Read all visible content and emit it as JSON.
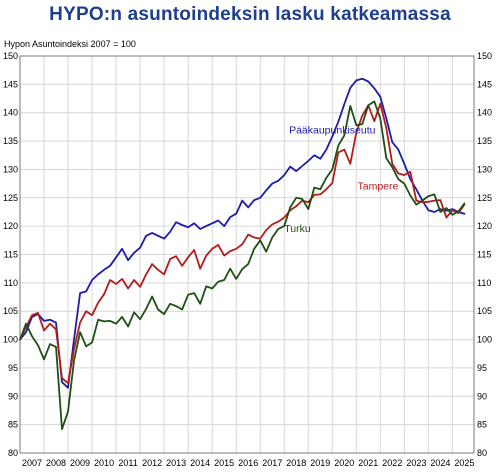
{
  "title": "HYPO:n asuntoindeksin lasku katkeamassa",
  "y_caption": "Hypon Asuntoindeksi 2007 = 100",
  "chart_data": {
    "type": "line",
    "ylim": [
      80,
      150
    ],
    "yticks": [
      80,
      85,
      90,
      95,
      100,
      105,
      110,
      115,
      120,
      125,
      130,
      135,
      140,
      145,
      150
    ],
    "xlim": [
      2007.0,
      2025.9
    ],
    "xtick_labels": [
      "2007",
      "2008",
      "2009",
      "2010",
      "2011",
      "2012",
      "2013",
      "2014",
      "2015",
      "2016",
      "2017",
      "2018",
      "2019",
      "2020",
      "2021",
      "2022",
      "2023",
      "2024",
      "2025"
    ],
    "grid": true,
    "legend": "inline labels",
    "series": [
      {
        "name": "Pääkaupunkiseutu",
        "color": "#1c1ca8",
        "x": [
          2007.0,
          2007.25,
          2007.5,
          2007.75,
          2008.0,
          2008.25,
          2008.5,
          2008.75,
          2009.0,
          2009.25,
          2009.5,
          2009.75,
          2010.0,
          2010.25,
          2010.5,
          2010.75,
          2011.0,
          2011.25,
          2011.5,
          2011.75,
          2012.0,
          2012.25,
          2012.5,
          2012.75,
          2013.0,
          2013.25,
          2013.5,
          2013.75,
          2014.0,
          2014.25,
          2014.5,
          2014.75,
          2015.0,
          2015.25,
          2015.5,
          2015.75,
          2016.0,
          2016.25,
          2016.5,
          2016.75,
          2017.0,
          2017.25,
          2017.5,
          2017.75,
          2018.0,
          2018.25,
          2018.5,
          2018.75,
          2019.0,
          2019.25,
          2019.5,
          2019.75,
          2020.0,
          2020.25,
          2020.5,
          2020.75,
          2021.0,
          2021.25,
          2021.5,
          2021.75,
          2022.0,
          2022.25,
          2022.5,
          2022.75,
          2023.0,
          2023.25,
          2023.5,
          2023.75,
          2024.0,
          2024.25,
          2024.5,
          2024.75,
          2025.0,
          2025.25,
          2025.5
        ],
        "values": [
          100.0,
          101.3,
          104.0,
          104.5,
          103.3,
          103.5,
          103.0,
          92.5,
          91.5,
          100.0,
          108.2,
          108.5,
          110.5,
          111.5,
          112.3,
          113.0,
          114.5,
          116.0,
          114.0,
          115.3,
          116.2,
          118.3,
          118.8,
          118.3,
          117.8,
          119.0,
          120.7,
          120.2,
          119.8,
          120.5,
          119.5,
          120.0,
          120.5,
          121.0,
          120.0,
          121.6,
          122.2,
          124.5,
          123.3,
          124.6,
          125.0,
          126.3,
          127.5,
          128.0,
          129.0,
          130.5,
          129.7,
          130.6,
          131.5,
          132.5,
          131.9,
          133.5,
          135.8,
          138.4,
          141.5,
          144.4,
          145.7,
          146.0,
          145.5,
          144.3,
          142.8,
          139.0,
          134.8,
          133.5,
          131.0,
          128.3,
          126.5,
          124.5,
          122.8,
          122.5,
          123.0,
          122.7,
          123.0,
          122.5,
          122.2
        ]
      },
      {
        "name": "Tampere",
        "color": "#b21c1c",
        "x": [
          2007.0,
          2007.25,
          2007.5,
          2007.75,
          2008.0,
          2008.25,
          2008.5,
          2008.75,
          2009.0,
          2009.25,
          2009.5,
          2009.75,
          2010.0,
          2010.25,
          2010.5,
          2010.75,
          2011.0,
          2011.25,
          2011.5,
          2011.75,
          2012.0,
          2012.25,
          2012.5,
          2012.75,
          2013.0,
          2013.25,
          2013.5,
          2013.75,
          2014.0,
          2014.25,
          2014.5,
          2014.75,
          2015.0,
          2015.25,
          2015.5,
          2015.75,
          2016.0,
          2016.25,
          2016.5,
          2016.75,
          2017.0,
          2017.25,
          2017.5,
          2017.75,
          2018.0,
          2018.25,
          2018.5,
          2018.75,
          2019.0,
          2019.25,
          2019.5,
          2019.75,
          2020.0,
          2020.25,
          2020.5,
          2020.75,
          2021.0,
          2021.25,
          2021.5,
          2021.75,
          2022.0,
          2022.25,
          2022.5,
          2022.75,
          2023.0,
          2023.25,
          2023.5,
          2023.75,
          2024.0,
          2024.25,
          2024.5,
          2024.75,
          2025.0,
          2025.25,
          2025.5
        ],
        "values": [
          100.0,
          102.2,
          104.3,
          104.7,
          101.6,
          102.8,
          101.8,
          93.2,
          92.3,
          98.3,
          103.0,
          105.0,
          104.3,
          106.5,
          108.0,
          110.5,
          109.8,
          110.7,
          109.0,
          110.5,
          109.3,
          111.5,
          113.3,
          112.3,
          111.5,
          114.2,
          114.7,
          113.0,
          114.5,
          115.8,
          112.5,
          114.8,
          116.0,
          116.7,
          114.8,
          115.6,
          116.0,
          116.8,
          118.5,
          118.0,
          117.8,
          119.3,
          120.3,
          120.8,
          121.5,
          122.8,
          123.5,
          124.5,
          124.2,
          125.5,
          125.6,
          126.5,
          127.6,
          133.0,
          133.5,
          131.0,
          136.5,
          139.5,
          141.3,
          138.5,
          141.6,
          137.3,
          131.0,
          129.3,
          129.0,
          129.6,
          124.5,
          124.2,
          124.3,
          124.5,
          124.6,
          121.5,
          122.8,
          122.3,
          123.8
        ]
      },
      {
        "name": "Turku",
        "color": "#1f5012",
        "x": [
          2007.0,
          2007.25,
          2007.5,
          2007.75,
          2008.0,
          2008.25,
          2008.5,
          2008.75,
          2009.0,
          2009.25,
          2009.5,
          2009.75,
          2010.0,
          2010.25,
          2010.5,
          2010.75,
          2011.0,
          2011.25,
          2011.5,
          2011.75,
          2012.0,
          2012.25,
          2012.5,
          2012.75,
          2013.0,
          2013.25,
          2013.5,
          2013.75,
          2014.0,
          2014.25,
          2014.5,
          2014.75,
          2015.0,
          2015.25,
          2015.5,
          2015.75,
          2016.0,
          2016.25,
          2016.5,
          2016.75,
          2017.0,
          2017.25,
          2017.5,
          2017.75,
          2018.0,
          2018.25,
          2018.5,
          2018.75,
          2019.0,
          2019.25,
          2019.5,
          2019.75,
          2020.0,
          2020.25,
          2020.5,
          2020.75,
          2021.0,
          2021.25,
          2021.5,
          2021.75,
          2022.0,
          2022.25,
          2022.5,
          2022.75,
          2023.0,
          2023.25,
          2023.5,
          2023.75,
          2024.0,
          2024.25,
          2024.5,
          2024.75,
          2025.0,
          2025.25,
          2025.5
        ],
        "values": [
          100.0,
          102.8,
          100.6,
          99.0,
          96.5,
          99.2,
          98.7,
          84.2,
          87.3,
          96.3,
          101.3,
          98.8,
          99.5,
          103.5,
          103.2,
          103.3,
          102.8,
          104.0,
          102.3,
          104.8,
          103.6,
          105.4,
          107.6,
          105.3,
          104.5,
          106.3,
          105.9,
          105.3,
          107.9,
          108.2,
          106.3,
          109.4,
          109.0,
          110.2,
          110.5,
          112.5,
          110.7,
          112.4,
          113.3,
          116.0,
          117.5,
          115.5,
          118.0,
          119.5,
          120.0,
          123.3,
          125.0,
          124.8,
          123.0,
          126.8,
          126.5,
          128.5,
          130.0,
          134.2,
          136.0,
          141.2,
          137.8,
          138.0,
          141.3,
          142.0,
          139.0,
          132.0,
          130.4,
          128.3,
          127.5,
          125.4,
          123.8,
          124.5,
          125.3,
          125.6,
          122.5,
          123.2,
          122.0,
          122.6,
          124.0
        ]
      }
    ],
    "series_labels": [
      {
        "text": "Pääkaupunkiseutu",
        "color": "#1c1ca8",
        "x": 2020.0,
        "y": 136.3
      },
      {
        "text": "Tampere",
        "color": "#b21c1c",
        "x": 2021.9,
        "y": 126.5
      },
      {
        "text": "Turku",
        "color": "#1f5012",
        "x": 2018.55,
        "y": 119.0
      }
    ]
  }
}
